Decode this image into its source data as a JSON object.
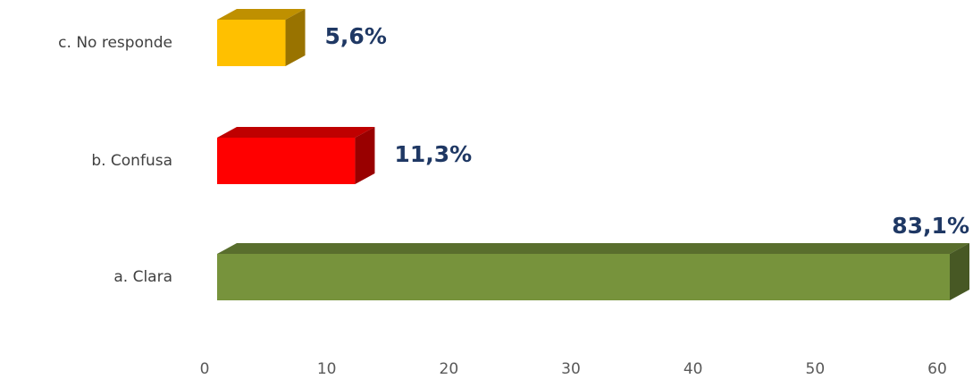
{
  "chart_data": {
    "type": "bar3d_horizontal",
    "categories": [
      "a. Clara",
      "b. Confusa",
      "c. No responde"
    ],
    "values": [
      83.1,
      11.3,
      5.6
    ],
    "value_labels": [
      "83,1%",
      "11,3%",
      "5,6%"
    ],
    "colors": [
      "#77933c",
      "#ff0000",
      "#ffc000"
    ],
    "xlim": [
      0,
      60
    ],
    "xticks": [
      0,
      10,
      20,
      30,
      40,
      50,
      60
    ]
  }
}
